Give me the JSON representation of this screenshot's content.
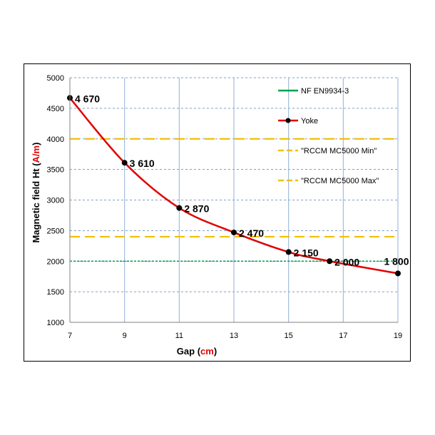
{
  "chart_data": {
    "type": "line",
    "title": "",
    "xlabel": "Gap",
    "xlabel_unit": "cm",
    "ylabel": "Magnetic field Ht",
    "ylabel_unit": "A/m",
    "xlim": [
      7,
      19
    ],
    "ylim": [
      1000,
      5000
    ],
    "xticks": [
      7,
      9,
      11,
      13,
      15,
      17,
      19
    ],
    "yticks": [
      1000,
      1500,
      2000,
      2500,
      3000,
      3500,
      4000,
      4500,
      5000
    ],
    "grid": true,
    "legend_position": "right",
    "series": [
      {
        "name": "Yoke",
        "color": "#e00000",
        "marker_color": "#000000",
        "style": "line-markers",
        "x": [
          7,
          9,
          11,
          13,
          15,
          16.5,
          19
        ],
        "y": [
          4670,
          3610,
          2870,
          2470,
          2150,
          2000,
          1800
        ],
        "labels": [
          "4 670",
          "3 610",
          "2 870",
          "2 470",
          "2 150",
          "2 000",
          "1 800"
        ]
      },
      {
        "name": "NF EN9934-3",
        "color": "#00a050",
        "style": "dotted",
        "value": 2000
      },
      {
        "name": "\"RCCM MC5000 Min\"",
        "color": "#f0c000",
        "style": "dashed",
        "value": 2400
      },
      {
        "name": "\"RCCM MC5000 Max\"",
        "color": "#f0c000",
        "style": "dashed",
        "value": 4000
      }
    ],
    "legend": [
      {
        "label": "NF EN9934-3",
        "series": "NF EN9934-3"
      },
      {
        "label": "Yoke",
        "series": "Yoke"
      },
      {
        "label": "\"RCCM MC5000 Min\"",
        "series": "\"RCCM MC5000 Min\""
      },
      {
        "label": "\"RCCM MC5000 Max\"",
        "series": "\"RCCM MC5000 Max\""
      }
    ]
  }
}
